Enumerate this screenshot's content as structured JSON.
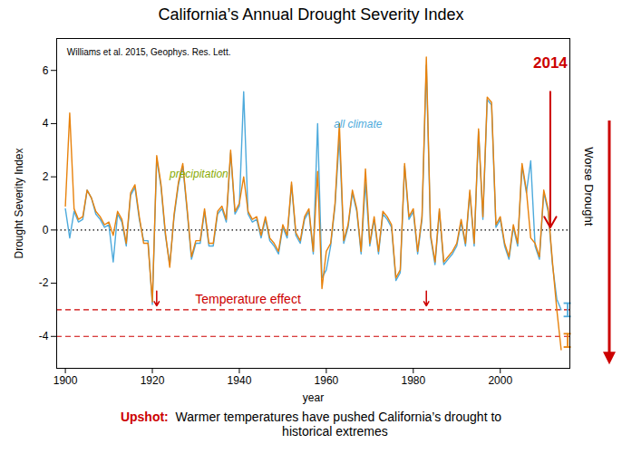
{
  "chart_data": {
    "type": "line",
    "title": "California’s Annual Drought Severity Index",
    "xlabel": "year",
    "ylabel": "Drought Severity Index",
    "x": [
      1900,
      1901,
      1902,
      1903,
      1904,
      1905,
      1906,
      1907,
      1908,
      1909,
      1910,
      1911,
      1912,
      1913,
      1914,
      1915,
      1916,
      1917,
      1918,
      1919,
      1920,
      1921,
      1922,
      1923,
      1924,
      1925,
      1926,
      1927,
      1928,
      1929,
      1930,
      1931,
      1932,
      1933,
      1934,
      1935,
      1936,
      1937,
      1938,
      1939,
      1940,
      1941,
      1942,
      1943,
      1944,
      1945,
      1946,
      1947,
      1948,
      1949,
      1950,
      1951,
      1952,
      1953,
      1954,
      1955,
      1956,
      1957,
      1958,
      1959,
      1960,
      1961,
      1962,
      1963,
      1964,
      1965,
      1966,
      1967,
      1968,
      1969,
      1970,
      1971,
      1972,
      1973,
      1974,
      1975,
      1976,
      1977,
      1978,
      1979,
      1980,
      1981,
      1982,
      1983,
      1984,
      1985,
      1986,
      1987,
      1988,
      1989,
      1990,
      1991,
      1992,
      1993,
      1994,
      1995,
      1996,
      1997,
      1998,
      1999,
      2000,
      2001,
      2002,
      2003,
      2004,
      2005,
      2006,
      2007,
      2008,
      2009,
      2010,
      2011,
      2012,
      2013,
      2014
    ],
    "series": [
      {
        "color": "#4DAADC",
        "values": [
          0.8,
          -0.3,
          0.7,
          0.3,
          0.4,
          1.5,
          1.2,
          0.6,
          0.4,
          0.1,
          0.2,
          -1.2,
          0.6,
          0.3,
          -0.6,
          1.3,
          1.6,
          0.4,
          -0.4,
          -0.4,
          -2.8,
          2.7,
          1.6,
          -0.2,
          -1.3,
          0.5,
          1.7,
          2.4,
          0.7,
          -1.1,
          -0.5,
          -0.5,
          0.7,
          -0.6,
          -0.6,
          0.6,
          0.8,
          0.3,
          2.9,
          0.6,
          0.9,
          5.2,
          0.6,
          0.3,
          0.4,
          -0.3,
          0.4,
          -0.4,
          -0.6,
          -0.9,
          0.1,
          -0.3,
          1.7,
          -0.2,
          -0.5,
          0.4,
          0.7,
          -0.9,
          4.0,
          -1.8,
          -1.5,
          -0.6,
          0.9,
          3.5,
          -0.5,
          0.1,
          1.4,
          0.7,
          -0.9,
          1.8,
          -0.6,
          0.4,
          -0.9,
          0.6,
          0.4,
          0.1,
          -1.9,
          -1.6,
          2.4,
          0.4,
          0.7,
          -0.9,
          0.4,
          6.2,
          -0.3,
          -1.3,
          0.7,
          -1.3,
          -1.1,
          -0.9,
          -0.6,
          0.3,
          -0.6,
          1.4,
          -0.6,
          3.7,
          0.4,
          4.9,
          4.7,
          0.1,
          0.4,
          -0.6,
          -1.1,
          0.1,
          -0.6,
          2.4,
          1.4,
          2.6,
          -0.6,
          -1.1,
          1.4,
          0.7,
          -1.3,
          -2.6,
          -3.0
        ]
      },
      {
        "color": "#E8820C",
        "values": [
          0.9,
          4.4,
          0.8,
          0.4,
          0.5,
          1.5,
          1.2,
          0.7,
          0.5,
          0.2,
          0.3,
          -0.2,
          0.7,
          0.4,
          -0.5,
          1.4,
          1.7,
          0.5,
          -0.5,
          -0.5,
          -2.7,
          2.8,
          1.7,
          -0.1,
          -1.4,
          0.6,
          1.8,
          2.5,
          0.8,
          -1.0,
          -0.4,
          -0.4,
          0.8,
          -0.5,
          -0.5,
          0.7,
          0.9,
          0.4,
          3.0,
          0.7,
          1.0,
          2.0,
          0.7,
          0.4,
          0.5,
          -0.2,
          0.5,
          -0.3,
          -0.5,
          -0.8,
          0.2,
          -0.2,
          1.8,
          -0.1,
          -0.4,
          0.5,
          0.8,
          -0.8,
          2.2,
          -2.2,
          -0.8,
          -0.5,
          1.0,
          4.0,
          -0.4,
          0.2,
          1.5,
          0.8,
          -0.8,
          2.3,
          -0.5,
          0.5,
          -0.8,
          0.7,
          0.5,
          0.2,
          -1.8,
          -1.5,
          2.5,
          0.5,
          0.8,
          -0.8,
          0.5,
          6.5,
          -0.2,
          -1.2,
          0.8,
          -1.2,
          -1.0,
          -0.8,
          -0.5,
          0.4,
          -0.5,
          1.5,
          -0.5,
          3.8,
          0.5,
          5.0,
          4.8,
          0.2,
          0.5,
          -0.5,
          -1.0,
          0.2,
          -0.5,
          2.5,
          1.5,
          -0.3,
          -0.5,
          -1.0,
          1.5,
          0.8,
          -1.2,
          -3.0,
          -4.5
        ]
      }
    ],
    "xlim": [
      1898,
      2016
    ],
    "xticks": [
      1900,
      1920,
      1940,
      1960,
      1980,
      2000
    ],
    "ylim": [
      -5.2,
      7.2
    ],
    "yticks": [
      -4,
      -2,
      0,
      2,
      4,
      6
    ],
    "grid": false,
    "hlines": [
      {
        "y": -3.0,
        "color": "#CC0000",
        "line_style": "dashed"
      },
      {
        "y": -4.0,
        "color": "#CC0000",
        "line_style": "dashed"
      },
      {
        "y": 0,
        "color": "black",
        "line_style": "dotted"
      }
    ],
    "error_bars": [
      {
        "x": 2015.5,
        "y": -3.0,
        "error": 0.25,
        "color": "#4DAADC"
      },
      {
        "x": 2015.5,
        "y": -4.15,
        "error": 0.25,
        "color": "#E8820C"
      }
    ],
    "arrows": [
      {
        "x": 1921,
        "y_from": -2.3,
        "y_to": -2.85,
        "color": "#CC0000"
      },
      {
        "x": 1983,
        "y_from": -2.3,
        "y_to": -2.85,
        "color": "#CC0000"
      },
      {
        "x": 2011.5,
        "y_from": 5.2,
        "y_to": 0.1,
        "color": "#CC0000"
      }
    ],
    "annotations": [
      {
        "text": "Williams et al. 2015, Geophys. Res. Lett.",
        "color": "black"
      },
      {
        "text": "precipitation",
        "color": "#88AA00"
      },
      {
        "text": "all climate",
        "color": "#4DAADC"
      },
      {
        "text": "Temperature effect",
        "color": "#CC0000"
      },
      {
        "text": "2014",
        "color": "#CC0000",
        "x": 2011.5,
        "y": 6.5
      }
    ],
    "side_label": {
      "text": "Worse Drought",
      "color": "black",
      "arrow_color": "#CC0000"
    },
    "upshot": [
      {
        "text": "Upshot:",
        "color": "#CC0000"
      },
      {
        "text": "  Warmer temperatures have pushed California’s drought to\nhistorical extremes",
        "color": "black"
      }
    ]
  }
}
